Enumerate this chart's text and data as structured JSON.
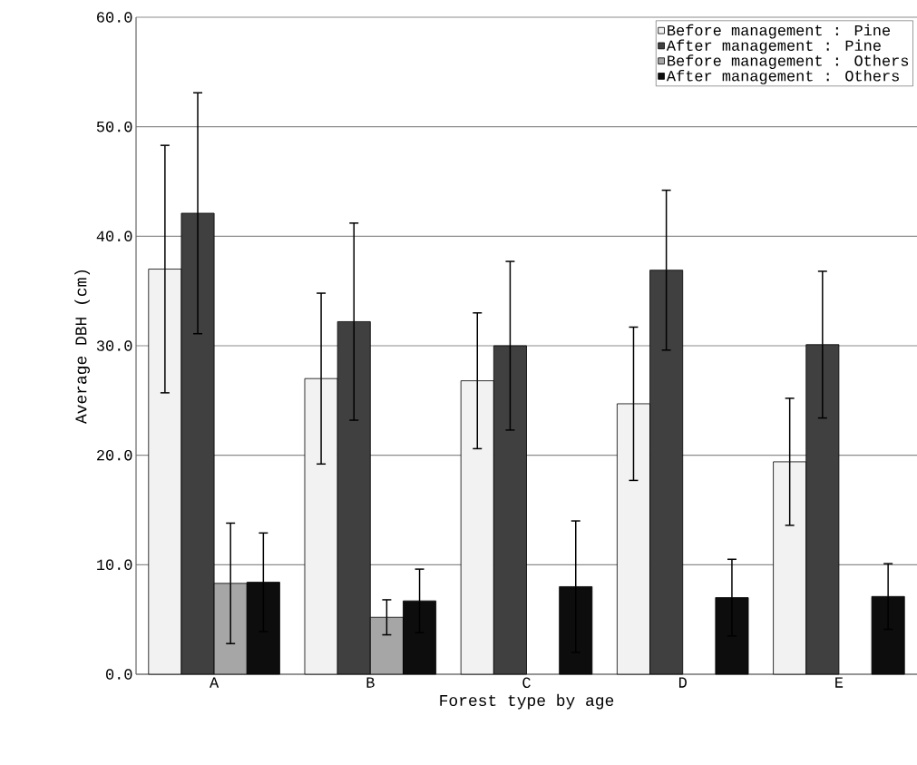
{
  "chart_data": {
    "type": "bar",
    "xlabel": "Forest type by age",
    "ylabel": "Average DBH (cm)",
    "categories": [
      "A",
      "B",
      "C",
      "D",
      "E"
    ],
    "series": [
      {
        "name": "Before management : Pine",
        "color": "#f2f2f2",
        "values": [
          37.0,
          27.0,
          26.8,
          24.7,
          19.4
        ],
        "errors": [
          11.3,
          7.8,
          6.2,
          7.0,
          5.8
        ]
      },
      {
        "name": "After management : Pine",
        "color": "#404040",
        "values": [
          42.1,
          32.2,
          30.0,
          36.9,
          30.1
        ],
        "errors": [
          11.0,
          9.0,
          7.7,
          7.3,
          6.7
        ]
      },
      {
        "name": "Before management : Others",
        "color": "#a6a6a6",
        "values": [
          8.3,
          5.2,
          null,
          null,
          null
        ],
        "errors": [
          5.5,
          1.6,
          null,
          null,
          null
        ]
      },
      {
        "name": "After management : Others",
        "color": "#0d0d0d",
        "values": [
          8.4,
          6.7,
          8.0,
          7.0,
          7.1
        ],
        "errors": [
          4.5,
          2.9,
          6.0,
          3.5,
          3.0
        ]
      }
    ],
    "ylim": [
      0,
      60
    ],
    "yticks": [
      {
        "value": 0,
        "label": "0.0"
      },
      {
        "value": 10,
        "label": "10.0"
      },
      {
        "value": 20,
        "label": "20.0"
      },
      {
        "value": 30,
        "label": "30.0"
      },
      {
        "value": 40,
        "label": "40.0"
      },
      {
        "value": 50,
        "label": "50.0"
      },
      {
        "value": 60,
        "label": "60.0"
      }
    ],
    "grid": "y",
    "legend": "top right"
  }
}
